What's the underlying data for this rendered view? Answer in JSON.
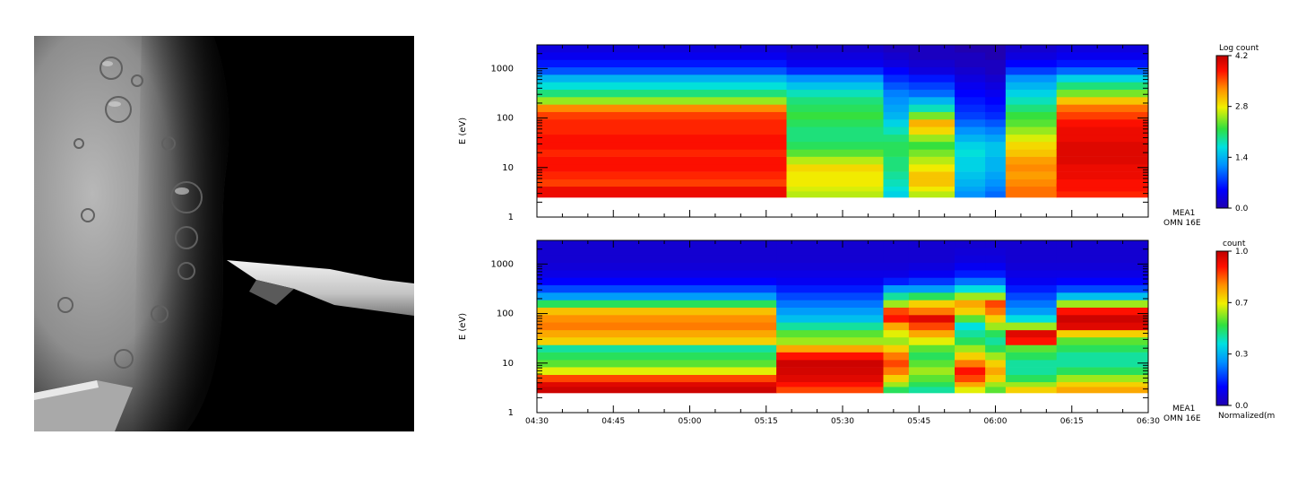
{
  "chart_data": [
    {
      "type": "heatmap",
      "panel": "top",
      "xlabel": "",
      "ylabel": "E (eV)",
      "y_scale": "log",
      "ylim": [
        1,
        3000
      ],
      "y_tick_labels": [
        "1",
        "10",
        "100",
        "1000"
      ],
      "x_tick_labels": [
        "04:30",
        "04:45",
        "05:00",
        "05:15",
        "05:30",
        "05:45",
        "06:00",
        "06:15",
        "06:30"
      ],
      "instrument_label_1": "MEA1",
      "instrument_label_2": "OMN 16E",
      "colorbar_title": "Log count",
      "colorbar_ticks": [
        "4.2",
        "2.8",
        "1.4",
        "0.0"
      ],
      "colorbar_range": [
        0.0,
        4.2
      ],
      "energy_bins": [
        "3",
        "4",
        "5",
        "7",
        "10",
        "14",
        "20",
        "28",
        "40",
        "56",
        "80",
        "113",
        "160",
        "226",
        "320",
        "452",
        "640",
        "905",
        "1280",
        "1810",
        "2560"
      ],
      "time_segments": [
        {
          "start": "04:30",
          "end": "05:19",
          "values": [
            3.9,
            3.9,
            3.6,
            3.7,
            3.8,
            3.8,
            3.7,
            3.8,
            3.8,
            3.7,
            3.7,
            3.6,
            3.3,
            2.5,
            2.0,
            1.7,
            1.4,
            0.9,
            0.6,
            0.4,
            0.3
          ]
        },
        {
          "start": "05:19",
          "end": "05:38",
          "values": [
            2.6,
            2.7,
            2.8,
            2.8,
            2.9,
            2.6,
            2.3,
            2.1,
            2.0,
            2.0,
            2.1,
            2.2,
            2.1,
            2.0,
            1.8,
            1.5,
            1.2,
            0.7,
            0.4,
            0.3,
            0.2
          ]
        },
        {
          "start": "05:38",
          "end": "05:43",
          "values": [
            1.6,
            1.7,
            1.8,
            1.9,
            2.0,
            2.0,
            2.1,
            2.1,
            2.0,
            1.8,
            1.6,
            1.4,
            1.3,
            1.2,
            1.1,
            0.9,
            0.7,
            0.5,
            0.3,
            0.2,
            0.1
          ]
        },
        {
          "start": "05:43",
          "end": "05:52",
          "values": [
            2.6,
            2.8,
            3.0,
            3.0,
            2.8,
            2.6,
            2.4,
            2.2,
            2.5,
            2.9,
            3.1,
            2.4,
            1.8,
            1.4,
            1.0,
            0.8,
            0.6,
            0.3,
            0.2,
            0.1,
            0.1
          ]
        },
        {
          "start": "05:52",
          "end": "05:58",
          "values": [
            1.2,
            1.3,
            1.4,
            1.5,
            1.6,
            1.6,
            1.7,
            1.6,
            1.4,
            1.2,
            1.0,
            0.8,
            0.7,
            0.6,
            0.5,
            0.4,
            0.3,
            0.2,
            0.1,
            0.1,
            0.0
          ]
        },
        {
          "start": "05:58",
          "end": "06:02",
          "values": [
            1.0,
            1.1,
            1.2,
            1.3,
            1.4,
            1.4,
            1.5,
            1.5,
            1.3,
            1.1,
            0.9,
            0.7,
            0.6,
            0.5,
            0.4,
            0.3,
            0.2,
            0.1,
            0.1,
            0.0,
            0.0
          ]
        },
        {
          "start": "06:02",
          "end": "06:12",
          "values": [
            3.4,
            3.4,
            3.3,
            3.2,
            3.3,
            3.2,
            3.0,
            2.9,
            2.7,
            2.5,
            2.3,
            2.2,
            2.0,
            1.8,
            1.6,
            1.4,
            1.2,
            0.8,
            0.5,
            0.3,
            0.2
          ]
        },
        {
          "start": "06:12",
          "end": "06:30",
          "values": [
            3.7,
            3.8,
            3.8,
            3.9,
            3.9,
            4.0,
            4.0,
            4.0,
            3.9,
            3.9,
            3.8,
            3.6,
            3.4,
            3.0,
            2.4,
            2.0,
            1.6,
            1.0,
            0.6,
            0.4,
            0.3
          ]
        }
      ]
    },
    {
      "type": "heatmap",
      "panel": "bottom",
      "xlabel": "",
      "ylabel": "E (eV)",
      "y_scale": "log",
      "ylim": [
        1,
        3000
      ],
      "y_tick_labels": [
        "1",
        "10",
        "100",
        "1000"
      ],
      "x_tick_labels": [
        "04:30",
        "04:45",
        "05:00",
        "05:15",
        "05:30",
        "05:45",
        "06:00",
        "06:15",
        "06:30"
      ],
      "instrument_label_1": "MEA1",
      "instrument_label_2": "OMN 16E",
      "colorbar_title": "count",
      "colorbar_subtitle": "Normalized(m",
      "colorbar_ticks": [
        "1.0",
        "0.7",
        "0.3",
        "0.0"
      ],
      "colorbar_range": [
        0.0,
        1.0
      ],
      "energy_bins": [
        "3",
        "4",
        "5",
        "7",
        "10",
        "14",
        "20",
        "28",
        "40",
        "56",
        "80",
        "113",
        "160",
        "226",
        "320",
        "452",
        "640",
        "905",
        "1280",
        "1810",
        "2560"
      ],
      "time_segments": [
        {
          "start": "04:30",
          "end": "05:17",
          "values": [
            0.98,
            0.95,
            0.85,
            0.65,
            0.55,
            0.5,
            0.45,
            0.7,
            0.75,
            0.8,
            0.78,
            0.72,
            0.5,
            0.3,
            0.2,
            0.12,
            0.08,
            0.06,
            0.05,
            0.05,
            0.05
          ]
        },
        {
          "start": "05:17",
          "end": "05:38",
          "values": [
            0.85,
            0.9,
            0.95,
            0.97,
            0.98,
            0.9,
            0.75,
            0.6,
            0.55,
            0.45,
            0.35,
            0.3,
            0.25,
            0.2,
            0.15,
            0.1,
            0.08,
            0.06,
            0.05,
            0.05,
            0.05
          ]
        },
        {
          "start": "05:38",
          "end": "05:43",
          "values": [
            0.5,
            0.6,
            0.7,
            0.8,
            0.85,
            0.8,
            0.7,
            0.6,
            0.65,
            0.75,
            0.9,
            0.85,
            0.6,
            0.45,
            0.3,
            0.15,
            0.08,
            0.06,
            0.05,
            0.05,
            0.05
          ]
        },
        {
          "start": "05:43",
          "end": "05:52",
          "values": [
            0.45,
            0.5,
            0.55,
            0.6,
            0.55,
            0.5,
            0.55,
            0.65,
            0.75,
            0.85,
            0.95,
            0.8,
            0.7,
            0.5,
            0.3,
            0.18,
            0.1,
            0.07,
            0.05,
            0.05,
            0.05
          ]
        },
        {
          "start": "05:52",
          "end": "05:58",
          "values": [
            0.65,
            0.75,
            0.85,
            0.9,
            0.8,
            0.7,
            0.6,
            0.5,
            0.45,
            0.4,
            0.55,
            0.7,
            0.75,
            0.6,
            0.4,
            0.25,
            0.15,
            0.1,
            0.07,
            0.06,
            0.05
          ]
        },
        {
          "start": "05:58",
          "end": "06:02",
          "values": [
            0.55,
            0.6,
            0.7,
            0.75,
            0.7,
            0.6,
            0.5,
            0.45,
            0.5,
            0.6,
            0.7,
            0.8,
            0.85,
            0.6,
            0.4,
            0.25,
            0.15,
            0.1,
            0.07,
            0.06,
            0.05
          ]
        },
        {
          "start": "06:02",
          "end": "06:12",
          "values": [
            0.7,
            0.6,
            0.5,
            0.45,
            0.45,
            0.5,
            0.55,
            0.9,
            0.95,
            0.6,
            0.4,
            0.3,
            0.25,
            0.2,
            0.15,
            0.1,
            0.08,
            0.06,
            0.05,
            0.05,
            0.05
          ]
        },
        {
          "start": "06:12",
          "end": "06:30",
          "values": [
            0.75,
            0.7,
            0.6,
            0.5,
            0.45,
            0.45,
            0.5,
            0.55,
            0.7,
            0.95,
            0.98,
            0.9,
            0.6,
            0.35,
            0.2,
            0.12,
            0.08,
            0.06,
            0.05,
            0.05,
            0.05
          ]
        }
      ]
    }
  ]
}
